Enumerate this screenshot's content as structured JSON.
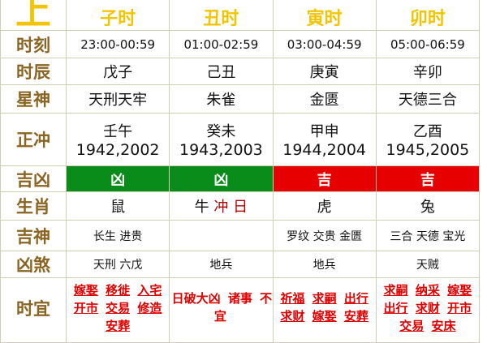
{
  "header": {
    "corner": "上",
    "hours": [
      "子时",
      "丑时",
      "寅时",
      "卯时"
    ]
  },
  "rows": {
    "time": {
      "label": "时刻",
      "values": [
        "23:00-00:59",
        "01:00-02:59",
        "03:00-04:59",
        "05:00-06:59"
      ]
    },
    "shichen": {
      "label": "时辰",
      "values": [
        "戊子",
        "己丑",
        "庚寅",
        "辛卯"
      ]
    },
    "xingshen": {
      "label": "星神",
      "values": [
        "天刑天牢",
        "朱雀",
        "金匮",
        "天德三合"
      ]
    },
    "zhengchong": {
      "label": "正冲",
      "values": [
        [
          "壬午",
          "1942,2002"
        ],
        [
          "癸未",
          "1943,2003"
        ],
        [
          "甲申",
          "1944,2004"
        ],
        [
          "乙酉",
          "1945,2005"
        ]
      ]
    },
    "jixiong": {
      "label": "吉凶",
      "values": [
        "凶",
        "凶",
        "吉",
        "吉"
      ],
      "colors": {
        "吉": "#e60000",
        "凶": "#0a8c1a"
      }
    },
    "shengxiao": {
      "label": "生肖",
      "values": [
        "鼠",
        "牛",
        "虎",
        "兔"
      ],
      "extra": "冲 日"
    },
    "jishen": {
      "label": "吉神",
      "values": [
        "长生 进贵",
        "",
        "罗纹 交贵 金匮",
        "三合 天德 宝光"
      ]
    },
    "xiongsha": {
      "label": "凶煞",
      "values": [
        "天刑 六戊",
        "地兵",
        "地兵",
        "天贼"
      ]
    },
    "shiyi": {
      "label": "时宜",
      "values": [
        [
          "嫁娶",
          "移徙",
          "入宅",
          "开市",
          "交易",
          "修造",
          "安葬"
        ],
        [
          "日破大凶",
          "诸事",
          "不宜"
        ],
        [
          "祈福",
          "求嗣",
          "出行",
          "求财",
          "嫁娶",
          "安葬"
        ],
        [
          "求嗣",
          "纳采",
          "嫁娶",
          "出行",
          "求财",
          "开市",
          "交易",
          "安床"
        ]
      ]
    }
  }
}
